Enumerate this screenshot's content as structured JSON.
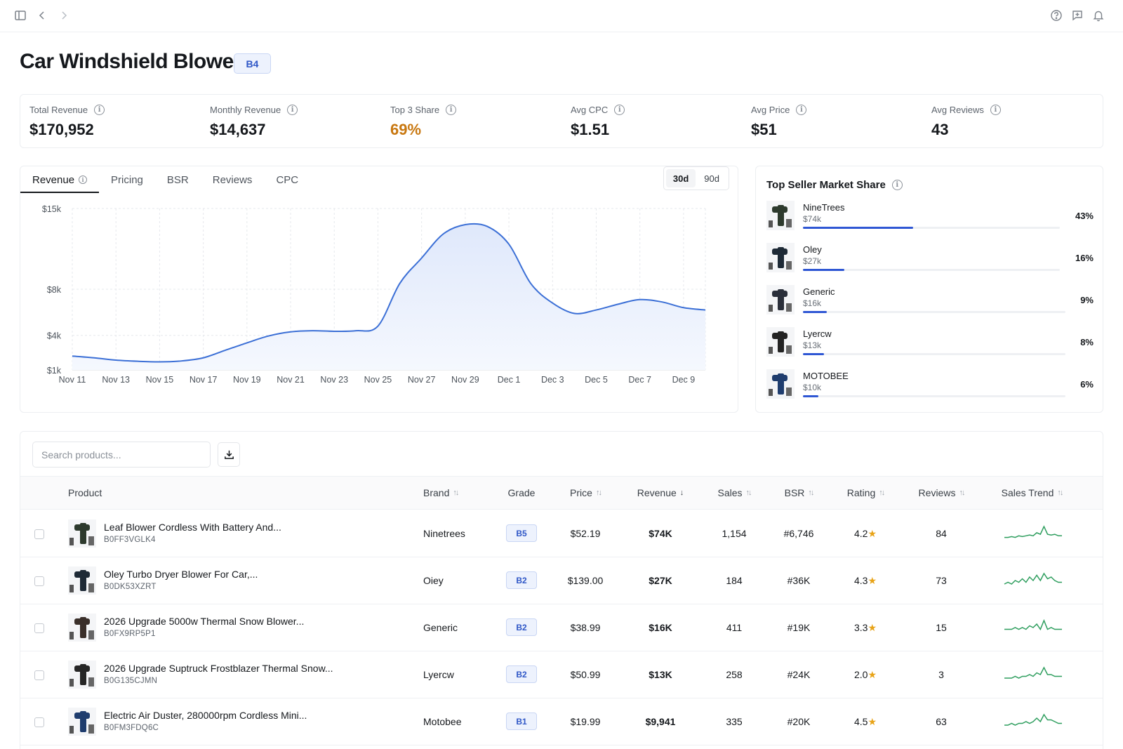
{
  "topbar": {
    "icons": [
      "sidebar-toggle-icon",
      "chevron-left-icon",
      "chevron-right-icon",
      "help-icon",
      "feedback-icon",
      "bell-icon"
    ]
  },
  "page": {
    "title": "Car Windshield Blower",
    "grade": "B4"
  },
  "metrics": [
    {
      "label": "Total Revenue",
      "value": "$170,952",
      "color": "#15181c"
    },
    {
      "label": "Monthly Revenue",
      "value": "$14,637",
      "color": "#15181c"
    },
    {
      "label": "Top 3 Share",
      "value": "69%",
      "color": "#c8770f"
    },
    {
      "label": "Avg CPC",
      "value": "$1.51",
      "color": "#15181c"
    },
    {
      "label": "Avg Price",
      "value": "$51",
      "color": "#15181c"
    },
    {
      "label": "Avg Reviews",
      "value": "43",
      "color": "#15181c"
    }
  ],
  "chart_tabs": [
    "Revenue",
    "Pricing",
    "BSR",
    "Reviews",
    "CPC"
  ],
  "active_tab": "Revenue",
  "ranges": [
    "30d",
    "90d"
  ],
  "active_range": "30d",
  "chart_data": {
    "type": "area",
    "title": "",
    "xlabel": "",
    "ylabel": "",
    "y_tick_labels": [
      "$15k",
      "$8k",
      "$4k",
      "$1k"
    ],
    "ylim": [
      1000,
      15000
    ],
    "x_tick_labels": [
      "Nov 11",
      "Nov 13",
      "Nov 15",
      "Nov 17",
      "Nov 19",
      "Nov 21",
      "Nov 23",
      "Nov 25",
      "Nov 27",
      "Nov 29",
      "Dec 1",
      "Dec 3",
      "Dec 5",
      "Dec 7",
      "Dec 9"
    ],
    "grid": true,
    "line_color": "#3b6fd6",
    "series": [
      {
        "values": [
          2200,
          2050,
          1850,
          1750,
          1700,
          1780,
          2050,
          2700,
          3350,
          3950,
          4300,
          4400,
          4350,
          4400,
          4800,
          8500,
          10700,
          12800,
          13600,
          13450,
          11900,
          8500,
          6800,
          5900,
          6200,
          6700,
          7100,
          6900,
          6400,
          6200
        ]
      }
    ]
  },
  "share": {
    "title": "Top Seller Market Share",
    "sellers": [
      {
        "name": "NineTrees",
        "revenue": "$74k",
        "pct_label": "43%",
        "share": 43
      },
      {
        "name": "Oley",
        "revenue": "$27k",
        "pct_label": "16%",
        "share": 16
      },
      {
        "name": "Generic",
        "revenue": "$16k",
        "pct_label": "9%",
        "share": 9
      },
      {
        "name": "Lyercw",
        "revenue": "$13k",
        "pct_label": "8%",
        "share": 8
      },
      {
        "name": "MOTOBEE",
        "revenue": "$10k",
        "pct_label": "6%",
        "share": 6
      }
    ]
  },
  "table": {
    "search_placeholder": "Search products...",
    "columns": {
      "product": "Product",
      "brand": "Brand",
      "grade": "Grade",
      "price": "Price",
      "revenue": "Revenue",
      "sales": "Sales",
      "bsr": "BSR",
      "rating": "Rating",
      "reviews": "Reviews",
      "trend": "Sales Trend"
    },
    "rows": [
      {
        "title": "Leaf Blower Cordless With Battery And...",
        "asin": "B0FF3VGLK4",
        "brand": "Ninetrees",
        "grade": "B5",
        "price": "$52.19",
        "revenue": "$74K",
        "sales": "1,154",
        "bsr": "#6,746",
        "rating": "4.2",
        "reviews": "84",
        "trend": [
          2,
          2,
          2.5,
          2,
          3,
          2.5,
          3,
          3.5,
          3,
          5,
          4,
          9,
          4,
          3.5,
          4,
          3,
          3
        ]
      },
      {
        "title": "Oley Turbo Dryer Blower For Car,...",
        "asin": "B0DK53XZRT",
        "brand": "Oiey",
        "grade": "B2",
        "price": "$139.00",
        "revenue": "$27K",
        "sales": "184",
        "bsr": "#36K",
        "rating": "4.3",
        "reviews": "73",
        "trend": [
          2,
          3,
          2,
          4,
          3,
          5,
          3,
          6,
          4,
          7,
          4,
          8,
          5,
          6,
          4,
          3,
          3
        ]
      },
      {
        "title": "2026 Upgrade 5000w Thermal Snow Blower...",
        "asin": "B0FX9RP5P1",
        "brand": "Generic",
        "grade": "B2",
        "price": "$38.99",
        "revenue": "$16K",
        "sales": "411",
        "bsr": "#19K",
        "rating": "3.3",
        "reviews": "15",
        "trend": [
          3,
          3,
          3,
          4,
          3,
          4,
          3,
          5,
          4,
          6,
          3,
          8,
          3,
          4,
          3,
          3,
          3
        ]
      },
      {
        "title": "2026 Upgrade Suptruck Frostblazer Thermal Snow...",
        "asin": "B0G135CJMN",
        "brand": "Lyercw",
        "grade": "B2",
        "price": "$50.99",
        "revenue": "$13K",
        "sales": "258",
        "bsr": "#24K",
        "rating": "2.0",
        "reviews": "3",
        "trend": [
          2,
          2,
          2,
          3,
          2,
          3,
          3,
          4,
          3,
          5,
          4,
          8,
          4,
          4,
          3,
          3,
          3
        ]
      },
      {
        "title": "Electric Air Duster, 280000rpm Cordless Mini...",
        "asin": "B0FM3FDQ6C",
        "brand": "Motobee",
        "grade": "B1",
        "price": "$19.99",
        "revenue": "$9,941",
        "sales": "335",
        "bsr": "#20K",
        "rating": "4.5",
        "reviews": "63",
        "trend": [
          2,
          2,
          3,
          2,
          3,
          3,
          4,
          3,
          4,
          6,
          4,
          8,
          5,
          5,
          4,
          3,
          3
        ]
      }
    ]
  }
}
